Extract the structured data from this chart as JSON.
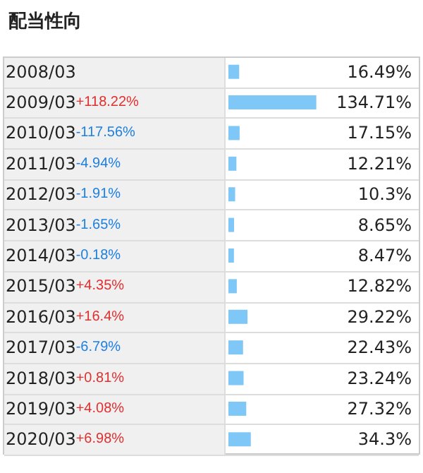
{
  "chart_data": {
    "type": "bar",
    "orientation": "horizontal",
    "title": "配当性向",
    "categories": [
      "2008/03",
      "2009/03",
      "2010/03",
      "2011/03",
      "2012/03",
      "2013/03",
      "2014/03",
      "2015/03",
      "2016/03",
      "2017/03",
      "2018/03",
      "2019/03",
      "2020/03"
    ],
    "values": [
      16.49,
      134.71,
      17.15,
      12.21,
      10.3,
      8.65,
      8.47,
      12.82,
      29.22,
      22.43,
      23.24,
      27.32,
      34.3
    ],
    "value_labels": [
      "16.49%",
      "134.71%",
      "17.15%",
      "12.21%",
      "10.3%",
      "8.65%",
      "8.47%",
      "12.82%",
      "29.22%",
      "22.43%",
      "23.24%",
      "27.32%",
      "34.3%"
    ],
    "color": "#7fc7f7",
    "annotations": [
      "+118.22%",
      "-117.56%",
      "-4.94%",
      "-1.91%",
      "-1.65%",
      "-0.18%",
      "+4.35%",
      "+16.4%",
      "-6.79%",
      "+0.81%",
      "+4.08%",
      "+6.98%"
    ]
  }
}
